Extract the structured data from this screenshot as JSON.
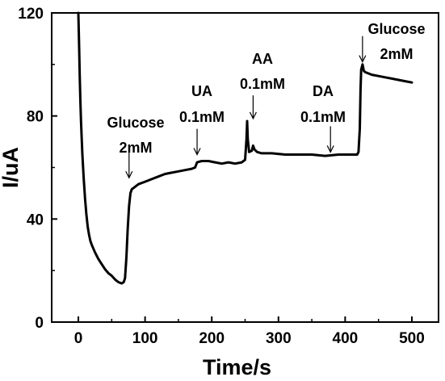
{
  "chart_data": {
    "type": "line",
    "title": "",
    "xlabel": "Time/s",
    "ylabel": "I/uA",
    "xlim": [
      -40,
      540
    ],
    "ylim": [
      0,
      120
    ],
    "grid": false,
    "legend": "none",
    "x_ticks": [
      0,
      100,
      200,
      300,
      400,
      500
    ],
    "y_ticks": [
      0,
      40,
      80,
      120
    ],
    "line_color": "#000000",
    "series": [
      {
        "points": [
          [
            0,
            120
          ],
          [
            1,
            108
          ],
          [
            2,
            96
          ],
          [
            3,
            86
          ],
          [
            4,
            78
          ],
          [
            5,
            71
          ],
          [
            6,
            65
          ],
          [
            8,
            56
          ],
          [
            10,
            48
          ],
          [
            12,
            42
          ],
          [
            14,
            37
          ],
          [
            16,
            34
          ],
          [
            18,
            31.5
          ],
          [
            20,
            30
          ],
          [
            25,
            27
          ],
          [
            30,
            24.5
          ],
          [
            35,
            22.5
          ],
          [
            40,
            20.5
          ],
          [
            45,
            19
          ],
          [
            50,
            18
          ],
          [
            55,
            16.5
          ],
          [
            60,
            15.5
          ],
          [
            65,
            15
          ],
          [
            68,
            15.5
          ],
          [
            70,
            17
          ],
          [
            72,
            25
          ],
          [
            74,
            36
          ],
          [
            76,
            45
          ],
          [
            78,
            50
          ],
          [
            80,
            51.5
          ],
          [
            85,
            52.5
          ],
          [
            90,
            53.5
          ],
          [
            100,
            54.5
          ],
          [
            110,
            55.5
          ],
          [
            120,
            56.5
          ],
          [
            130,
            57.5
          ],
          [
            140,
            58
          ],
          [
            150,
            58.5
          ],
          [
            160,
            59
          ],
          [
            170,
            59.5
          ],
          [
            175,
            60
          ],
          [
            178,
            62
          ],
          [
            185,
            62.5
          ],
          [
            195,
            62.5
          ],
          [
            205,
            62
          ],
          [
            215,
            61.5
          ],
          [
            225,
            62
          ],
          [
            235,
            61.5
          ],
          [
            245,
            62
          ],
          [
            250,
            63
          ],
          [
            252,
            71
          ],
          [
            253,
            78
          ],
          [
            254,
            71
          ],
          [
            256,
            66
          ],
          [
            260,
            66.5
          ],
          [
            262,
            68.5
          ],
          [
            264,
            67
          ],
          [
            268,
            66
          ],
          [
            275,
            65.5
          ],
          [
            290,
            65.5
          ],
          [
            310,
            65
          ],
          [
            330,
            65
          ],
          [
            350,
            65
          ],
          [
            370,
            64.5
          ],
          [
            390,
            65
          ],
          [
            410,
            65
          ],
          [
            418,
            65
          ],
          [
            420,
            66
          ],
          [
            422,
            75
          ],
          [
            423,
            90
          ],
          [
            424,
            98
          ],
          [
            426,
            100
          ],
          [
            428,
            97.5
          ],
          [
            430,
            97
          ],
          [
            440,
            96
          ],
          [
            450,
            95.5
          ],
          [
            460,
            95
          ],
          [
            470,
            94.5
          ],
          [
            480,
            94
          ],
          [
            490,
            93.5
          ],
          [
            500,
            93
          ]
        ]
      }
    ],
    "annotations": [
      {
        "lines": [
          "Glucose",
          "2mM"
        ],
        "arrow_x": 76,
        "arrow_y_from": 67,
        "arrow_y_to": 56
      },
      {
        "lines": [
          "UA",
          "0.1mM"
        ],
        "arrow_x": 178,
        "arrow_y_from": 75,
        "arrow_y_to": 65
      },
      {
        "lines": [
          "AA",
          "0.1mM"
        ],
        "arrow_x": 262,
        "arrow_y_from": 88,
        "arrow_y_to": 79
      },
      {
        "lines": [
          "DA",
          "0.1mM"
        ],
        "arrow_x": 378,
        "arrow_y_from": 76,
        "arrow_y_to": 66
      },
      {
        "lines": [
          "Glucose",
          "2mM"
        ],
        "arrow_x": 426,
        "arrow_y_from": 111,
        "arrow_y_to": 101
      }
    ]
  }
}
